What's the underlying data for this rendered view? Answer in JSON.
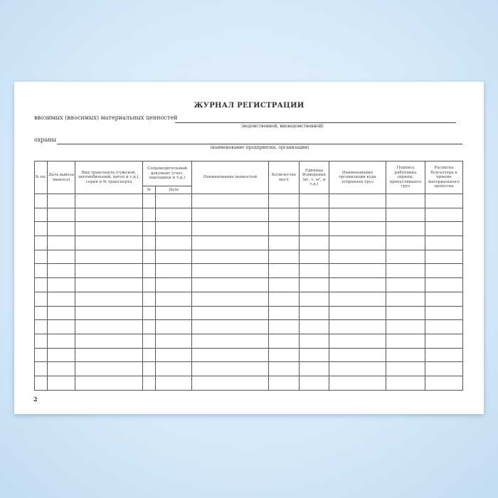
{
  "title": "ЖУРНАЛ РЕГИСТРАЦИИ",
  "line1_label": "ввозимых (вносимых)  материальных ценностей",
  "line1_caption": "(ведомственной, вневедомственной)",
  "line2_label": "охраны",
  "line2_caption": "(наименование предприятия, организации)",
  "columns": {
    "num": "№ пп.",
    "date": "Дата вывоза (выноса)",
    "transport": "Вид транспорта (гужевой, автомобильный, вагон и т.д.), серия и № транспорта",
    "doc": "Сопроводительный документ (счет, накладная и т.д.)",
    "doc_num": "№",
    "doc_date": "Дата",
    "name": "Наименование ценностей",
    "qty": "Количество мест",
    "unit": "Единица Измерения (кг, т, м³, и т.д.)",
    "org": "Наименование организации куда отправлен груз",
    "sign": "Подпись работника охраны, пропустившего груз",
    "receipt": "Расписка бухгалтера в приеме материального пропуска"
  },
  "empty_rows": 14,
  "page_number": "2"
}
